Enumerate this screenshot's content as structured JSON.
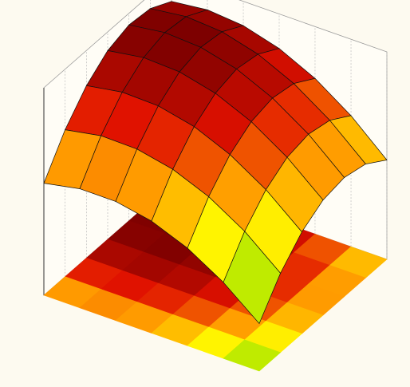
{
  "chart_data": {
    "type": "surface",
    "x": [
      -1,
      -0.667,
      -0.333,
      0,
      0.333,
      0.667,
      1
    ],
    "y": [
      -1,
      -0.667,
      -0.333,
      0,
      0.333,
      0.667,
      1
    ],
    "z": [
      [
        54.0,
        57.4,
        57.4,
        54.0,
        47.1,
        36.7,
        22.9
      ],
      [
        70.8,
        74.0,
        73.7,
        70.0,
        62.9,
        52.3,
        38.2
      ],
      [
        83.1,
        86.0,
        85.5,
        81.6,
        74.2,
        63.4,
        49.1
      ],
      [
        91.0,
        93.7,
        92.9,
        88.7,
        81.1,
        70.0,
        55.5
      ],
      [
        94.4,
        96.8,
        95.8,
        91.4,
        83.5,
        72.2,
        57.4
      ],
      [
        93.3,
        95.5,
        94.3,
        89.6,
        81.5,
        69.9,
        54.9
      ],
      [
        87.8,
        89.8,
        88.3,
        83.4,
        75.0,
        63.2,
        47.9
      ]
    ],
    "xlim": [
      -1,
      1
    ],
    "ylim": [
      -1,
      1
    ],
    "zlim": [
      0,
      100
    ],
    "colors": [
      "#0a8a1a",
      "#9ee000",
      "#ffff00",
      "#ff9a00",
      "#e01000",
      "#7a0000"
    ],
    "grid": true,
    "contour_floor": true
  }
}
